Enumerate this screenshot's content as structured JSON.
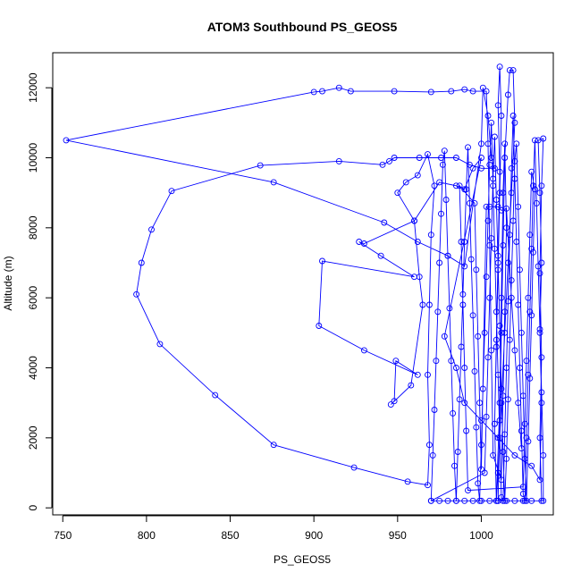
{
  "chart_data": {
    "type": "scatter",
    "mode": "lines+markers",
    "title": "ATOM3 Southbound PS_GEOS5",
    "xlabel": "PS_GEOS5",
    "ylabel": "Altitude (m)",
    "xlim": [
      744,
      1043
    ],
    "ylim": [
      -200,
      13000
    ],
    "xticks": [
      750,
      800,
      850,
      900,
      950,
      1000
    ],
    "yticks": [
      0,
      2000,
      4000,
      6000,
      8000,
      10000,
      12000
    ],
    "grid": false,
    "legend": "none",
    "color": "#0000ff",
    "marker": "open-circle",
    "series": [
      {
        "name": "",
        "points": [
          [
            970,
            200
          ],
          [
            971,
            1500
          ],
          [
            972,
            2800
          ],
          [
            973,
            4200
          ],
          [
            974,
            5600
          ],
          [
            975,
            7000
          ],
          [
            976,
            8400
          ],
          [
            977,
            9800
          ],
          [
            978,
            10200
          ],
          [
            979,
            8800
          ],
          [
            980,
            7200
          ],
          [
            981,
            5700
          ],
          [
            982,
            4200
          ],
          [
            983,
            2700
          ],
          [
            984,
            1200
          ],
          [
            985,
            200
          ],
          [
            986,
            1600
          ],
          [
            987,
            3100
          ],
          [
            988,
            4600
          ],
          [
            989,
            6100
          ],
          [
            990,
            7600
          ],
          [
            991,
            9100
          ],
          [
            992,
            10300
          ],
          [
            993,
            8700
          ],
          [
            994,
            7100
          ],
          [
            995,
            5500
          ],
          [
            996,
            3900
          ],
          [
            997,
            2300
          ],
          [
            998,
            700
          ],
          [
            999,
            200
          ],
          [
            1000,
            1800
          ],
          [
            1001,
            3400
          ],
          [
            1002,
            5000
          ],
          [
            1003,
            6600
          ],
          [
            1004,
            8200
          ],
          [
            1005,
            9800
          ],
          [
            1006,
            11000
          ],
          [
            1007,
            9200
          ],
          [
            1008,
            7400
          ],
          [
            1009,
            5600
          ],
          [
            1010,
            3800
          ],
          [
            1011,
            2000
          ],
          [
            1012,
            300
          ],
          [
            1013,
            200
          ],
          [
            1014,
            2100
          ],
          [
            1015,
            4000
          ],
          [
            1016,
            5900
          ],
          [
            1017,
            7800
          ],
          [
            1018,
            9700
          ],
          [
            1019,
            11200
          ],
          [
            1020,
            9400
          ],
          [
            1021,
            7600
          ],
          [
            1022,
            5800
          ],
          [
            1023,
            4000
          ],
          [
            1024,
            2200
          ],
          [
            1025,
            400
          ],
          [
            1026,
            200
          ],
          [
            1027,
            2000
          ],
          [
            1028,
            3800
          ],
          [
            1029,
            5600
          ],
          [
            1030,
            7400
          ],
          [
            1031,
            9200
          ],
          [
            1032,
            10500
          ],
          [
            1033,
            8700
          ],
          [
            1034,
            6900
          ],
          [
            1035,
            5100
          ],
          [
            1036,
            3300
          ],
          [
            1037,
            1500
          ],
          [
            1037,
            200
          ],
          [
            1010,
            200
          ],
          [
            1011,
            2500
          ],
          [
            1012,
            5000
          ],
          [
            1013,
            7500
          ],
          [
            1014,
            10000
          ],
          [
            1016,
            11800
          ],
          [
            1017,
            12500
          ],
          [
            1019,
            12500
          ],
          [
            1020,
            11000
          ],
          [
            1018,
            9000
          ],
          [
            1016,
            7000
          ],
          [
            1014,
            5000
          ],
          [
            1012,
            3000
          ],
          [
            1010,
            1000
          ],
          [
            1009,
            200
          ],
          [
            1008,
            2400
          ],
          [
            1009,
            4800
          ],
          [
            1010,
            7200
          ],
          [
            1011,
            9600
          ],
          [
            1010,
            11500
          ],
          [
            1011,
            12600
          ],
          [
            1012,
            11200
          ],
          [
            1011,
            9000
          ],
          [
            1010,
            6800
          ],
          [
            1009,
            4600
          ],
          [
            1008,
            2400
          ],
          [
            1009,
            200
          ],
          [
            1011,
            3000
          ],
          [
            1012,
            6000
          ],
          [
            1013,
            9000
          ],
          [
            1014,
            10400
          ],
          [
            1015,
            8000
          ],
          [
            1014,
            5600
          ],
          [
            1013,
            3200
          ],
          [
            1012,
            800
          ],
          [
            1007,
            1500
          ],
          [
            1006,
            4500
          ],
          [
            1005,
            7500
          ],
          [
            1004,
            10400
          ],
          [
            1003,
            11900
          ],
          [
            995,
            11900
          ],
          [
            990,
            11950
          ],
          [
            982,
            11900
          ],
          [
            970,
            11880
          ],
          [
            948,
            11900
          ],
          [
            922,
            11900
          ],
          [
            915,
            12000
          ],
          [
            905,
            11900
          ],
          [
            900,
            11880
          ],
          [
            752,
            10500
          ],
          [
            876,
            9300
          ],
          [
            942,
            8150
          ],
          [
            962,
            7600
          ],
          [
            980,
            7200
          ],
          [
            990,
            6900
          ],
          [
            1000,
            10400
          ],
          [
            1001,
            12000
          ],
          [
            1004,
            11200
          ],
          [
            1006,
            10000
          ],
          [
            1008,
            9700
          ],
          [
            1000,
            9700
          ],
          [
            993,
            9800
          ],
          [
            985,
            10000
          ],
          [
            976,
            10000
          ],
          [
            963,
            10000
          ],
          [
            948,
            10000
          ],
          [
            945,
            9900
          ],
          [
            941,
            9800
          ],
          [
            915,
            9900
          ],
          [
            868,
            9780
          ],
          [
            815,
            9050
          ],
          [
            803,
            7950
          ],
          [
            797,
            7000
          ],
          [
            794,
            6100
          ],
          [
            808,
            4680
          ],
          [
            841,
            3220
          ],
          [
            876,
            1800
          ],
          [
            924,
            1150
          ],
          [
            956,
            750
          ],
          [
            968,
            650
          ],
          [
            969,
            1800
          ],
          [
            968,
            3800
          ],
          [
            969,
            5800
          ],
          [
            970,
            7800
          ],
          [
            972,
            9200
          ],
          [
            968,
            10100
          ],
          [
            962,
            9500
          ],
          [
            955,
            9300
          ],
          [
            950,
            9000
          ],
          [
            960,
            8200
          ],
          [
            930,
            7550
          ],
          [
            927,
            7600
          ],
          [
            940,
            7200
          ],
          [
            960,
            6600
          ],
          [
            905,
            7050
          ],
          [
            903,
            5200
          ],
          [
            930,
            4500
          ],
          [
            962,
            3800
          ],
          [
            949,
            4200
          ],
          [
            948,
            3050
          ],
          [
            946,
            2950
          ],
          [
            958,
            3500
          ],
          [
            965,
            5800
          ],
          [
            963,
            6600
          ],
          [
            960,
            8200
          ],
          [
            975,
            9300
          ],
          [
            985,
            9200
          ],
          [
            990,
            9100
          ],
          [
            995,
            9700
          ],
          [
            1000,
            10000
          ],
          [
            978,
            4900
          ],
          [
            985,
            4000
          ],
          [
            990,
            3000
          ],
          [
            1000,
            2500
          ],
          [
            1010,
            2000
          ],
          [
            1020,
            1500
          ],
          [
            1030,
            1200
          ],
          [
            1035,
            800
          ],
          [
            1036,
            3000
          ],
          [
            1035,
            5000
          ],
          [
            1036,
            7000
          ],
          [
            1035,
            9000
          ],
          [
            1034,
            10500
          ],
          [
            1037,
            10550
          ],
          [
            1036,
            9200
          ],
          [
            1035,
            6700
          ],
          [
            1036,
            4300
          ],
          [
            1035,
            2000
          ],
          [
            1036,
            200
          ],
          [
            1030,
            200
          ],
          [
            1025,
            200
          ],
          [
            1020,
            200
          ],
          [
            1015,
            200
          ],
          [
            1010,
            200
          ],
          [
            1005,
            200
          ],
          [
            1000,
            200
          ],
          [
            995,
            200
          ],
          [
            990,
            200
          ],
          [
            985,
            200
          ],
          [
            980,
            200
          ],
          [
            975,
            200
          ],
          [
            970,
            200
          ],
          [
            1002,
            1000
          ],
          [
            1003,
            2600
          ],
          [
            1004,
            4300
          ],
          [
            1005,
            6000
          ],
          [
            1006,
            7700
          ],
          [
            1007,
            9400
          ],
          [
            1008,
            10600
          ],
          [
            1009,
            8800
          ],
          [
            1010,
            7000
          ],
          [
            1011,
            5200
          ],
          [
            1012,
            3400
          ],
          [
            1013,
            1600
          ],
          [
            1014,
            200
          ],
          [
            1015,
            1400
          ],
          [
            1016,
            3100
          ],
          [
            1017,
            4800
          ],
          [
            1018,
            6500
          ],
          [
            1019,
            8200
          ],
          [
            1020,
            9900
          ],
          [
            1021,
            10400
          ],
          [
            1022,
            8600
          ],
          [
            1023,
            6800
          ],
          [
            1024,
            5000
          ],
          [
            1025,
            3200
          ],
          [
            1026,
            1400
          ],
          [
            1027,
            200
          ],
          [
            1028,
            1900
          ],
          [
            1029,
            3700
          ],
          [
            1030,
            5500
          ],
          [
            1031,
            7300
          ],
          [
            1032,
            9100
          ],
          [
            1030,
            9600
          ],
          [
            1029,
            7800
          ],
          [
            1028,
            6000
          ],
          [
            1027,
            4200
          ],
          [
            1026,
            2400
          ],
          [
            1025,
            600
          ],
          [
            992,
            500
          ],
          [
            991,
            2200
          ],
          [
            990,
            4000
          ],
          [
            989,
            5800
          ],
          [
            988,
            7600
          ],
          [
            987,
            9200
          ],
          [
            996,
            8700
          ],
          [
            997,
            6800
          ],
          [
            998,
            4900
          ],
          [
            999,
            3000
          ],
          [
            1000,
            1100
          ],
          [
            1003,
            8600
          ],
          [
            1005,
            8600
          ],
          [
            1010,
            8600
          ],
          [
            1012,
            8500
          ],
          [
            1015,
            8550
          ],
          [
            1018,
            6000
          ],
          [
            1020,
            4500
          ],
          [
            1022,
            3000
          ],
          [
            1024,
            1700
          ]
        ]
      }
    ]
  }
}
